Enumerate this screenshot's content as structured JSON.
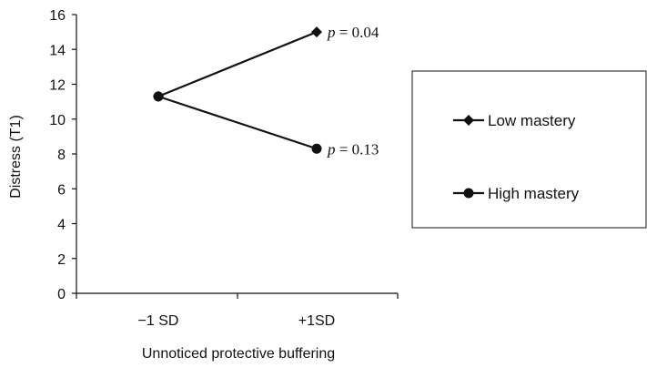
{
  "chart_data": {
    "type": "line",
    "x": [
      "−1 SD",
      "+1SD"
    ],
    "xlabel": "Unnoticed protective buffering",
    "ylabel": "Distress (T1)",
    "ylim": [
      0,
      16
    ],
    "yticks": [
      0,
      2,
      4,
      6,
      8,
      10,
      12,
      14,
      16
    ],
    "grid": false,
    "legend_position": "right",
    "series": [
      {
        "name": "Low mastery",
        "marker": "diamond",
        "values": [
          11.3,
          15.0
        ],
        "annotation": {
          "p_label": "p",
          "p_value": "= 0.04"
        }
      },
      {
        "name": "High mastery",
        "marker": "circle",
        "values": [
          11.3,
          8.3
        ],
        "annotation": {
          "p_label": "p",
          "p_value": "= 0.13"
        }
      }
    ]
  },
  "colors": {
    "line": "#111111",
    "axis": "#111111",
    "background": "#ffffff"
  }
}
